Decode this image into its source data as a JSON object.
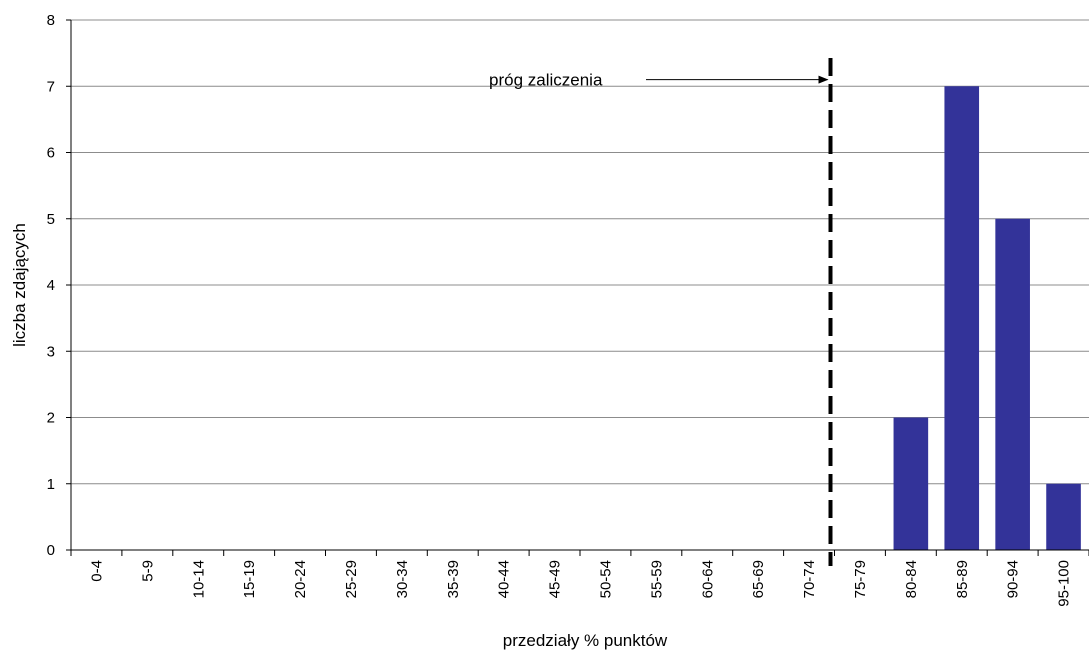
{
  "chart_data": {
    "type": "bar",
    "title": "",
    "xlabel": "przedziały % punktów",
    "ylabel": "liczba zdających",
    "categories": [
      "0-4",
      "5-9",
      "10-14",
      "15-19",
      "20-24",
      "25-29",
      "30-34",
      "35-39",
      "40-44",
      "45-49",
      "50-54",
      "55-59",
      "60-64",
      "65-69",
      "70-74",
      "75-79",
      "80-84",
      "85-89",
      "90-94",
      "95-100"
    ],
    "values": [
      0,
      0,
      0,
      0,
      0,
      0,
      0,
      0,
      0,
      0,
      0,
      0,
      0,
      0,
      0,
      0,
      2,
      7,
      5,
      1
    ],
    "ylim": [
      0,
      8
    ],
    "yticks": [
      "0",
      "1",
      "2",
      "3",
      "4",
      "5",
      "6",
      "7",
      "8"
    ],
    "grid": true,
    "legend": "none",
    "bar_color": "#333399",
    "annotation": {
      "text": "próg zaliczenia",
      "threshold_position": "between 70-74 and 75-79",
      "points_to_value": 7.1,
      "line_style": "dashed"
    }
  }
}
